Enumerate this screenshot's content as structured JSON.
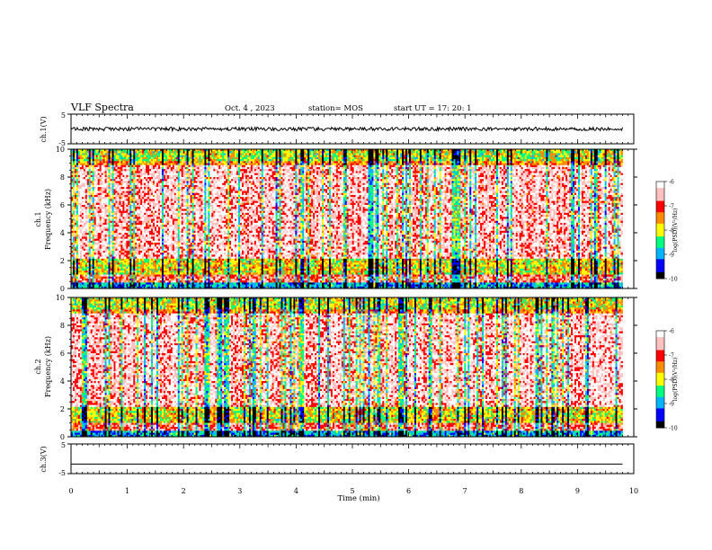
{
  "header": {
    "title": "VLF Spectra",
    "date": "Oct. 4 , 2023",
    "station": "station= MOS",
    "start_ut": "start UT = 17: 20: 1"
  },
  "colors": {
    "scale": [
      "#000000",
      "#0000ff",
      "#00b4ff",
      "#00ff80",
      "#ffff00",
      "#ff8c00",
      "#ff0000",
      "#ffc0c0",
      "#ffffff"
    ],
    "trace": "#000000",
    "axis": "#000000"
  },
  "chart_data": [
    {
      "type": "line",
      "panel": "ch1-waveform",
      "ylabel": "ch.1(V)",
      "ylim": [
        -5,
        5
      ],
      "yticks": [
        "5",
        "-5"
      ],
      "xlim": [
        0,
        9.8
      ],
      "x_unit": "min",
      "baseline_value": 0,
      "noise_amplitude": 0.6
    },
    {
      "type": "heatmap",
      "panel": "ch1-spectrogram",
      "ylabel": "ch.1",
      "ylabel2": "Frequency (kHz)",
      "ylim": [
        0,
        10
      ],
      "yticks": [
        "0",
        "2",
        "4",
        "6",
        "8",
        "10"
      ],
      "xlim": [
        0,
        9.8
      ],
      "colorbar": {
        "label": "log(PSD)(V²/Hz)",
        "range": [
          -10,
          -6
        ],
        "ticks": [
          "-6",
          "-7",
          "-8",
          "-9",
          "-10"
        ]
      }
    },
    {
      "type": "heatmap",
      "panel": "ch2-spectrogram",
      "ylabel": "ch.2",
      "ylabel2": "Frequency (kHz)",
      "ylim": [
        0,
        10
      ],
      "yticks": [
        "0",
        "2",
        "4",
        "6",
        "8",
        "10"
      ],
      "xlim": [
        0,
        9.8
      ],
      "colorbar": {
        "label": "log(PSD)(V²/Hz)",
        "range": [
          -10,
          -6
        ],
        "ticks": [
          "-6",
          "-7",
          "-8",
          "-9",
          "-10"
        ]
      }
    },
    {
      "type": "line",
      "panel": "ch3-waveform",
      "ylabel": "ch.3(V)",
      "ylim": [
        -5,
        5
      ],
      "yticks": [
        "5",
        "-5"
      ],
      "xlim": [
        0,
        9.8
      ],
      "x_unit": "min",
      "baseline_value": -1.8,
      "noise_amplitude": 0.0
    }
  ],
  "xaxis": {
    "label": "Time (min)",
    "range": [
      0,
      10
    ],
    "ticks": [
      "0",
      "1",
      "2",
      "3",
      "4",
      "5",
      "6",
      "7",
      "8",
      "9",
      "10"
    ]
  }
}
